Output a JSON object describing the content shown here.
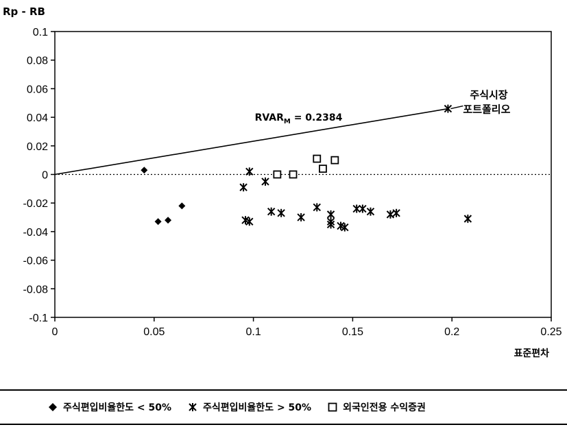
{
  "chart_data": {
    "type": "scatter",
    "ylabel": "Rp - RB",
    "xlabel": "표준편차",
    "xlim": [
      0,
      0.25
    ],
    "ylim": [
      -0.1,
      0.1
    ],
    "xticks": [
      "0",
      "0.05",
      "0.1",
      "0.15",
      "0.2",
      "0.25"
    ],
    "yticks": [
      "0.1",
      "0.08",
      "0.06",
      "0.04",
      "0.02",
      "0",
      "-0.02",
      "-0.04",
      "-0.06",
      "-0.08",
      "-0.1"
    ],
    "zero_line": "dotted",
    "line": {
      "from": [
        0,
        0
      ],
      "to": [
        0.198,
        0.046
      ],
      "label": "RVAR_M = 0.2384"
    },
    "market_label": [
      "주식시장",
      "포트폴리오"
    ],
    "series": [
      {
        "name": "주식편입비율한도 < 50%",
        "marker": "diamond",
        "points": [
          [
            0.045,
            0.003
          ],
          [
            0.052,
            -0.033
          ],
          [
            0.057,
            -0.032
          ],
          [
            0.064,
            -0.022
          ]
        ]
      },
      {
        "name": "주식편입비율한도 > 50%",
        "marker": "star",
        "points": [
          [
            0.095,
            -0.009
          ],
          [
            0.096,
            -0.032
          ],
          [
            0.098,
            -0.033
          ],
          [
            0.098,
            0.002
          ],
          [
            0.106,
            -0.005
          ],
          [
            0.109,
            -0.026
          ],
          [
            0.114,
            -0.027
          ],
          [
            0.124,
            -0.03
          ],
          [
            0.132,
            -0.023
          ],
          [
            0.139,
            -0.028
          ],
          [
            0.139,
            -0.033
          ],
          [
            0.139,
            -0.035
          ],
          [
            0.144,
            -0.036
          ],
          [
            0.146,
            -0.037
          ],
          [
            0.152,
            -0.024
          ],
          [
            0.155,
            -0.024
          ],
          [
            0.159,
            -0.026
          ],
          [
            0.169,
            -0.028
          ],
          [
            0.172,
            -0.027
          ],
          [
            0.198,
            0.046
          ],
          [
            0.208,
            -0.031
          ]
        ]
      },
      {
        "name": "외국인전용 수익증권",
        "marker": "square",
        "points": [
          [
            0.112,
            0.0
          ],
          [
            0.12,
            0.0
          ],
          [
            0.132,
            0.011
          ],
          [
            0.135,
            0.004
          ],
          [
            0.141,
            0.01
          ]
        ]
      }
    ]
  }
}
